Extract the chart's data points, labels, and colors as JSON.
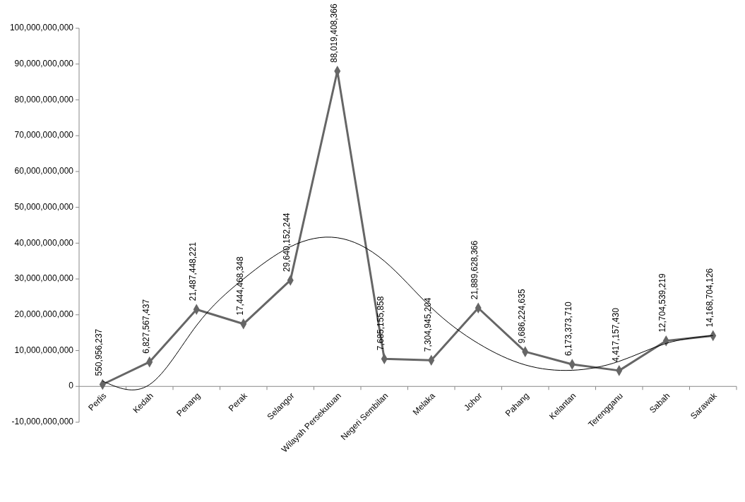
{
  "chart_data": {
    "type": "line",
    "categories": [
      "Perlis",
      "Kedah",
      "Penang",
      "Perak",
      "Selangor",
      "Wilayah Persekutuan",
      "Negeri Sembilan",
      "Melaka",
      "Johor",
      "Pahang",
      "Kelantan",
      "Terengganu",
      "Sabah",
      "Sarawak"
    ],
    "series": [
      {
        "color": "#666666",
        "marker": "diamond",
        "line_style": "solid",
        "values": [
          550956237,
          6827567437,
          21487448221,
          17444468348,
          29640152244,
          88019408366,
          7685155858,
          7304945204,
          21889628366,
          9686224635,
          6173373710,
          4417157430,
          12704539219,
          14168704126
        ],
        "value_labels": [
          "550,956,237",
          "6,827,567,437",
          "21,487,448,221",
          "17,444,468,348",
          "29,640,152,244",
          "88,019,408,366",
          "7,685,155,858",
          "7,304,945,204",
          "21,889,628,366",
          "9,686,224,635",
          "6,173,373,710",
          "4,417,157,430",
          "12,704,539,219",
          "14,168,704,126"
        ]
      },
      {
        "type": "line",
        "color": "#000000",
        "marker": "none",
        "line_style": "solid",
        "values": [
          1500000000,
          500000000,
          17000000000,
          30000000000,
          39000000000,
          41500000000,
          35000000000,
          22000000000,
          12000000000,
          6000000000,
          4500000000,
          7000000000,
          12000000000,
          14200000000
        ]
      }
    ],
    "ylim": [
      -10000000000,
      100000000000
    ],
    "yticks": [
      {
        "value": -10000000000,
        "label": "-10,000,000,000"
      },
      0,
      {
        "value": 10000000000,
        "label": "10,000,000,000"
      },
      {
        "value": 20000000000,
        "label": "20,000,000,000"
      },
      {
        "value": 30000000000,
        "label": "30,000,000,000"
      },
      {
        "value": 40000000000,
        "label": "40,000,000,000"
      },
      {
        "value": 50000000000,
        "label": "50,000,000,000"
      },
      {
        "value": 60000000000,
        "label": "60,000,000,000"
      },
      {
        "value": 70000000000,
        "label": "70,000,000,000"
      },
      {
        "value": 80000000000,
        "label": "80,000,000,000"
      },
      {
        "value": 90000000000,
        "label": "90,000,000,000"
      },
      {
        "value": 100000000000,
        "label": "100,000,000,000"
      }
    ],
    "grid": false
  }
}
